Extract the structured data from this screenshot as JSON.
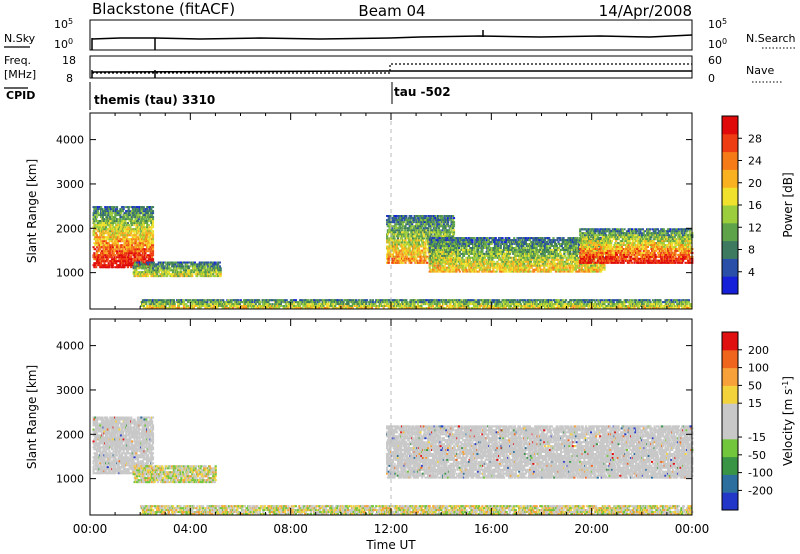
{
  "header": {
    "station": "Blackstone (fitACF)",
    "beam": "Beam 04",
    "date": "14/Apr/2008"
  },
  "panels": {
    "nsky": {
      "left_label": "N.Sky",
      "right_label": "N.Search",
      "left_ticks": [
        "10^5",
        "10^0"
      ],
      "right_ticks": [
        "10^5",
        "10^0"
      ]
    },
    "freq": {
      "left_label_1": "Freq.",
      "left_label_2": "[MHz]",
      "right_label": "Nave",
      "left_ticks": [
        "18",
        "8"
      ],
      "right_ticks": [
        "60",
        "0"
      ]
    },
    "cpid": {
      "label": "CPID",
      "segments": [
        "themis (tau) 3310",
        "tau -502"
      ]
    }
  },
  "chart_data": [
    {
      "type": "heatmap",
      "name": "Power",
      "xlabel": "",
      "ylabel": "Slant Range [km]",
      "x_ticks": [
        "00:00",
        "04:00",
        "08:00",
        "12:00",
        "16:00",
        "20:00",
        "00:00"
      ],
      "x_range_hours": [
        0,
        24
      ],
      "ylim": [
        180,
        4600
      ],
      "y_ticks": [
        1000,
        2000,
        3000,
        4000
      ],
      "colorbar": {
        "label": "Power [dB]",
        "ticks": [
          "4",
          "8",
          "12",
          "16",
          "20",
          "24",
          "28"
        ],
        "colors": [
          "#1520d8",
          "#2a4fa8",
          "#3d7a60",
          "#5ea24a",
          "#9ccd3c",
          "#f0e12c",
          "#f9b021",
          "#f57b19",
          "#ee3d12",
          "#e00a0a"
        ]
      },
      "regions": [
        {
          "t0": 0.1,
          "t1": 2.5,
          "r0": 1100,
          "r1": 2500,
          "peak": 0.85
        },
        {
          "t0": 1.7,
          "t1": 5.2,
          "r0": 900,
          "r1": 1250,
          "peak": 0.35
        },
        {
          "t0": 11.8,
          "t1": 14.5,
          "r0": 1200,
          "r1": 2300,
          "peak": 0.55
        },
        {
          "t0": 13.5,
          "t1": 20.5,
          "r0": 1000,
          "r1": 1800,
          "peak": 0.45
        },
        {
          "t0": 19.5,
          "t1": 24,
          "r0": 1200,
          "r1": 2000,
          "peak": 0.8
        },
        {
          "t0": 2.0,
          "t1": 24,
          "r0": 180,
          "r1": 400,
          "peak": 0.4
        }
      ]
    },
    {
      "type": "heatmap",
      "name": "Velocity",
      "xlabel": "Time UT",
      "ylabel": "Slant Range [km]",
      "x_ticks": [
        "00:00",
        "04:00",
        "08:00",
        "12:00",
        "16:00",
        "20:00",
        "00:00"
      ],
      "x_range_hours": [
        0,
        24
      ],
      "ylim": [
        180,
        4600
      ],
      "y_ticks": [
        1000,
        2000,
        3000,
        4000
      ],
      "colorbar": {
        "label": "Velocity [m s^-1]",
        "ticks": [
          "200",
          "100",
          "50",
          "15",
          "-15",
          "-50",
          "-100",
          "-200"
        ],
        "colors": [
          "#2236c8",
          "#2c6f9e",
          "#3a9446",
          "#72c63c",
          "#c8c8c8",
          "#c8c8c8",
          "#f3d33b",
          "#f7a13a",
          "#f0651e",
          "#e01010"
        ]
      },
      "regions": [
        {
          "t0": 0.1,
          "t1": 2.5,
          "r0": 1100,
          "r1": 2400,
          "mode": "ground"
        },
        {
          "t0": 1.7,
          "t1": 5.0,
          "r0": 900,
          "r1": 1300,
          "mode": "mixed"
        },
        {
          "t0": 11.8,
          "t1": 24,
          "r0": 1000,
          "r1": 2200,
          "mode": "ground"
        },
        {
          "t0": 2.0,
          "t1": 24,
          "r0": 180,
          "r1": 400,
          "mode": "mixed"
        }
      ]
    }
  ]
}
